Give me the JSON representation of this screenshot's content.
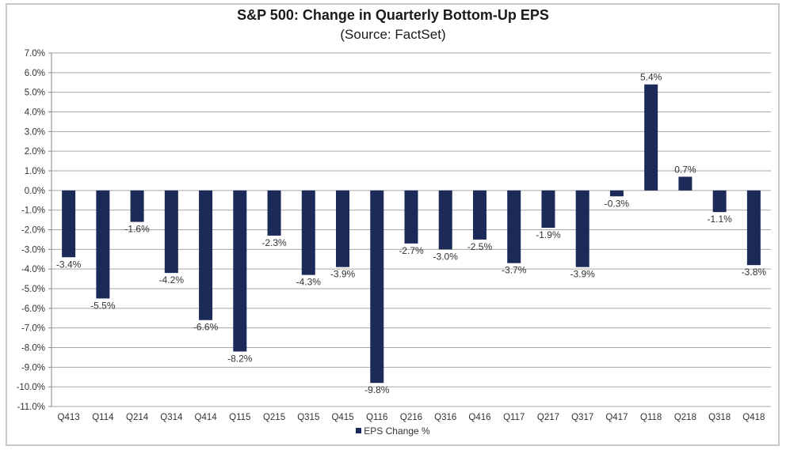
{
  "chart_data": {
    "type": "bar",
    "title": "S&P 500: Change in Quarterly Bottom-Up EPS",
    "subtitle": "(Source: FactSet)",
    "xlabel": "",
    "ylabel": "",
    "categories": [
      "Q413",
      "Q114",
      "Q214",
      "Q314",
      "Q414",
      "Q115",
      "Q215",
      "Q315",
      "Q415",
      "Q116",
      "Q216",
      "Q316",
      "Q416",
      "Q117",
      "Q217",
      "Q317",
      "Q417",
      "Q118",
      "Q218",
      "Q318",
      "Q418"
    ],
    "series": [
      {
        "name": "EPS Change %",
        "color": "#1c2a5a",
        "values": [
          -3.4,
          -5.5,
          -1.6,
          -4.2,
          -6.6,
          -8.2,
          -2.3,
          -4.3,
          -3.9,
          -9.8,
          -2.7,
          -3.0,
          -2.5,
          -3.7,
          -1.9,
          -3.9,
          -0.3,
          5.4,
          0.7,
          -1.1,
          -3.8
        ],
        "data_labels": [
          "-3.4%",
          "-5.5%",
          "-1.6%",
          "-4.2%",
          "-6.6%",
          "-8.2%",
          "-2.3%",
          "-4.3%",
          "-3.9%",
          "-9.8%",
          "-2.7%",
          "-3.0%",
          "-2.5%",
          "-3.7%",
          "-1.9%",
          "-3.9%",
          "-0.3%",
          "5.4%",
          "0.7%",
          "-1.1%",
          "-3.8%"
        ]
      }
    ],
    "ylim": [
      -11,
      7
    ],
    "yticks": [
      7,
      6,
      5,
      4,
      3,
      2,
      1,
      0,
      -1,
      -2,
      -3,
      -4,
      -5,
      -6,
      -7,
      -8,
      -9,
      -10,
      -11
    ],
    "ytick_labels": [
      "7.0%",
      "6.0%",
      "5.0%",
      "4.0%",
      "3.0%",
      "2.0%",
      "1.0%",
      "0.0%",
      "-1.0%",
      "-2.0%",
      "-3.0%",
      "-4.0%",
      "-5.0%",
      "-6.0%",
      "-7.0%",
      "-8.0%",
      "-9.0%",
      "-10.0%",
      "-11.0%"
    ],
    "grid": true,
    "legend": {
      "position": "bottom",
      "entries": [
        "EPS Change %"
      ]
    }
  }
}
